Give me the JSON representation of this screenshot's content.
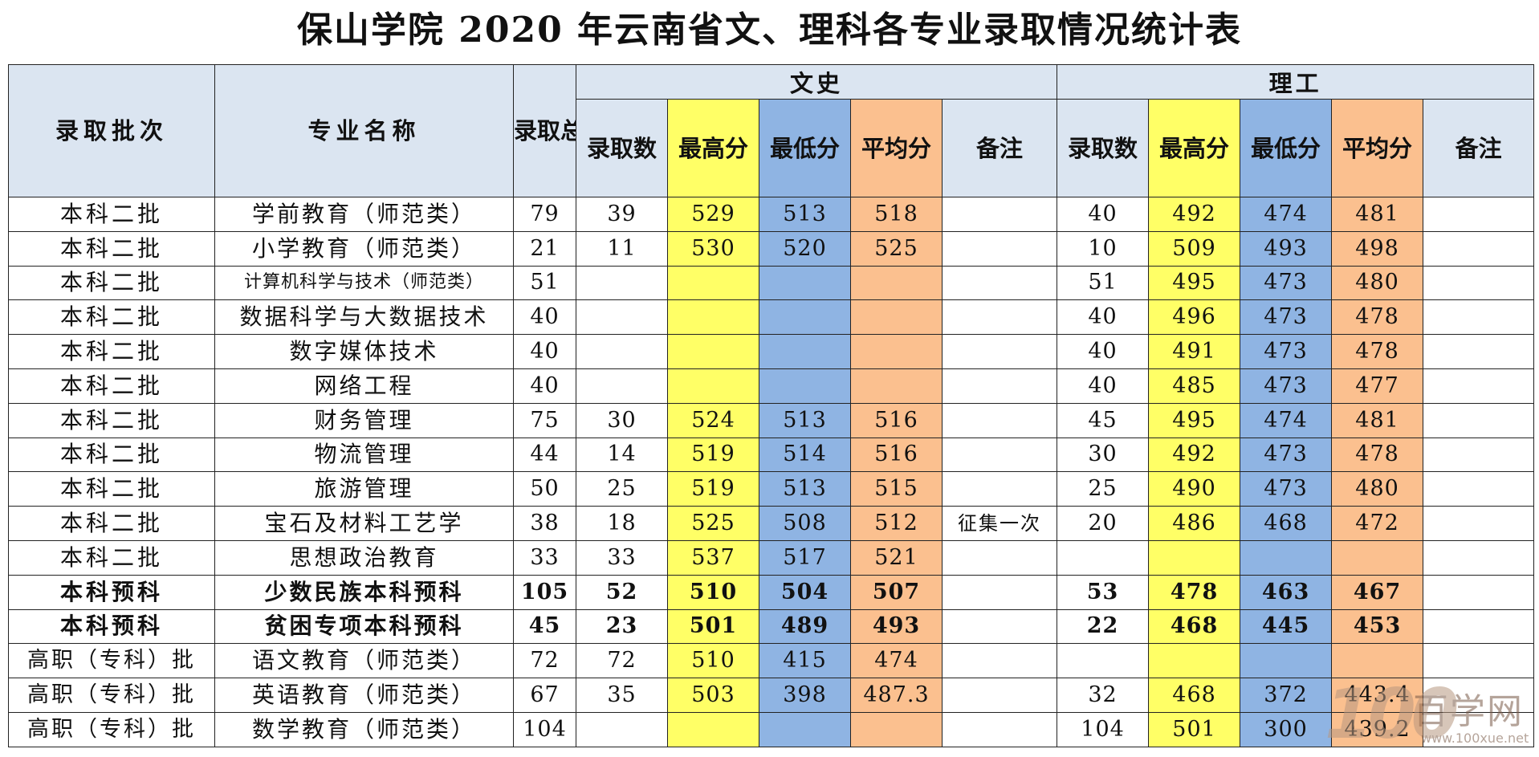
{
  "title": "保山学院 2020 年云南省文、理科各专业录取情况统计表",
  "headers": {
    "batch": "录取批次",
    "major": "专业名称",
    "total": "录取总数",
    "group_arts": "文史",
    "group_science": "理工",
    "count": "录取数",
    "max": "最高分",
    "min": "最低分",
    "avg": "平均分",
    "note": "备注"
  },
  "rows": [
    {
      "batch": "本科二批",
      "major": "学前教育（师范类）",
      "total": "79",
      "a_count": "39",
      "a_max": "529",
      "a_min": "513",
      "a_avg": "518",
      "a_note": "",
      "s_count": "40",
      "s_max": "492",
      "s_min": "474",
      "s_avg": "481",
      "s_note": ""
    },
    {
      "batch": "本科二批",
      "major": "小学教育（师范类）",
      "total": "21",
      "a_count": "11",
      "a_max": "530",
      "a_min": "520",
      "a_avg": "525",
      "a_note": "",
      "s_count": "10",
      "s_max": "509",
      "s_min": "493",
      "s_avg": "498",
      "s_note": ""
    },
    {
      "batch": "本科二批",
      "major": "计算机科学与技术（师范类）",
      "total": "51",
      "a_count": "",
      "a_max": "",
      "a_min": "",
      "a_avg": "",
      "a_note": "",
      "s_count": "51",
      "s_max": "495",
      "s_min": "473",
      "s_avg": "480",
      "s_note": ""
    },
    {
      "batch": "本科二批",
      "major": "数据科学与大数据技术",
      "total": "40",
      "a_count": "",
      "a_max": "",
      "a_min": "",
      "a_avg": "",
      "a_note": "",
      "s_count": "40",
      "s_max": "496",
      "s_min": "473",
      "s_avg": "478",
      "s_note": ""
    },
    {
      "batch": "本科二批",
      "major": "数字媒体技术",
      "total": "40",
      "a_count": "",
      "a_max": "",
      "a_min": "",
      "a_avg": "",
      "a_note": "",
      "s_count": "40",
      "s_max": "491",
      "s_min": "473",
      "s_avg": "478",
      "s_note": ""
    },
    {
      "batch": "本科二批",
      "major": "网络工程",
      "total": "40",
      "a_count": "",
      "a_max": "",
      "a_min": "",
      "a_avg": "",
      "a_note": "",
      "s_count": "40",
      "s_max": "485",
      "s_min": "473",
      "s_avg": "477",
      "s_note": ""
    },
    {
      "batch": "本科二批",
      "major": "财务管理",
      "total": "75",
      "a_count": "30",
      "a_max": "524",
      "a_min": "513",
      "a_avg": "516",
      "a_note": "",
      "s_count": "45",
      "s_max": "495",
      "s_min": "474",
      "s_avg": "481",
      "s_note": ""
    },
    {
      "batch": "本科二批",
      "major": "物流管理",
      "total": "44",
      "a_count": "14",
      "a_max": "519",
      "a_min": "514",
      "a_avg": "516",
      "a_note": "",
      "s_count": "30",
      "s_max": "492",
      "s_min": "473",
      "s_avg": "478",
      "s_note": ""
    },
    {
      "batch": "本科二批",
      "major": "旅游管理",
      "total": "50",
      "a_count": "25",
      "a_max": "519",
      "a_min": "513",
      "a_avg": "515",
      "a_note": "",
      "s_count": "25",
      "s_max": "490",
      "s_min": "473",
      "s_avg": "480",
      "s_note": ""
    },
    {
      "batch": "本科二批",
      "major": "宝石及材料工艺学",
      "total": "38",
      "a_count": "18",
      "a_max": "525",
      "a_min": "508",
      "a_avg": "512",
      "a_note": "征集一次",
      "s_count": "20",
      "s_max": "486",
      "s_min": "468",
      "s_avg": "472",
      "s_note": ""
    },
    {
      "batch": "本科二批",
      "major": "思想政治教育",
      "total": "33",
      "a_count": "33",
      "a_max": "537",
      "a_min": "517",
      "a_avg": "521",
      "a_note": "",
      "s_count": "",
      "s_max": "",
      "s_min": "",
      "s_avg": "",
      "s_note": ""
    },
    {
      "batch": "本科预科",
      "major": "少数民族本科预科",
      "total": "105",
      "a_count": "52",
      "a_max": "510",
      "a_min": "504",
      "a_avg": "507",
      "a_note": "",
      "s_count": "53",
      "s_max": "478",
      "s_min": "463",
      "s_avg": "467",
      "s_note": ""
    },
    {
      "batch": "本科预科",
      "major": "贫困专项本科预科",
      "total": "45",
      "a_count": "23",
      "a_max": "501",
      "a_min": "489",
      "a_avg": "493",
      "a_note": "",
      "s_count": "22",
      "s_max": "468",
      "s_min": "445",
      "s_avg": "453",
      "s_note": ""
    },
    {
      "batch": "高职（专科）批",
      "major": "语文教育（师范类）",
      "total": "72",
      "a_count": "72",
      "a_max": "510",
      "a_min": "415",
      "a_avg": "474",
      "a_note": "",
      "s_count": "",
      "s_max": "",
      "s_min": "",
      "s_avg": "",
      "s_note": ""
    },
    {
      "batch": "高职（专科）批",
      "major": "英语教育（师范类）",
      "total": "67",
      "a_count": "35",
      "a_max": "503",
      "a_min": "398",
      "a_avg": "487.3",
      "a_note": "",
      "s_count": "32",
      "s_max": "468",
      "s_min": "372",
      "s_avg": "443.4",
      "s_note": ""
    },
    {
      "batch": "高职（专科）批",
      "major": "数学教育（师范类）",
      "total": "104",
      "a_count": "",
      "a_max": "",
      "a_min": "",
      "a_avg": "",
      "a_note": "",
      "s_count": "104",
      "s_max": "501",
      "s_min": "300",
      "s_avg": "439.2",
      "s_note": ""
    }
  ],
  "watermark": {
    "logo": "100",
    "text": "百学网",
    "url": "www.100xue.net"
  },
  "colors": {
    "header_bg": "#dbe5f1",
    "max_col": "#ffff66",
    "min_col": "#8fb4e3",
    "avg_col": "#fbc08f"
  }
}
